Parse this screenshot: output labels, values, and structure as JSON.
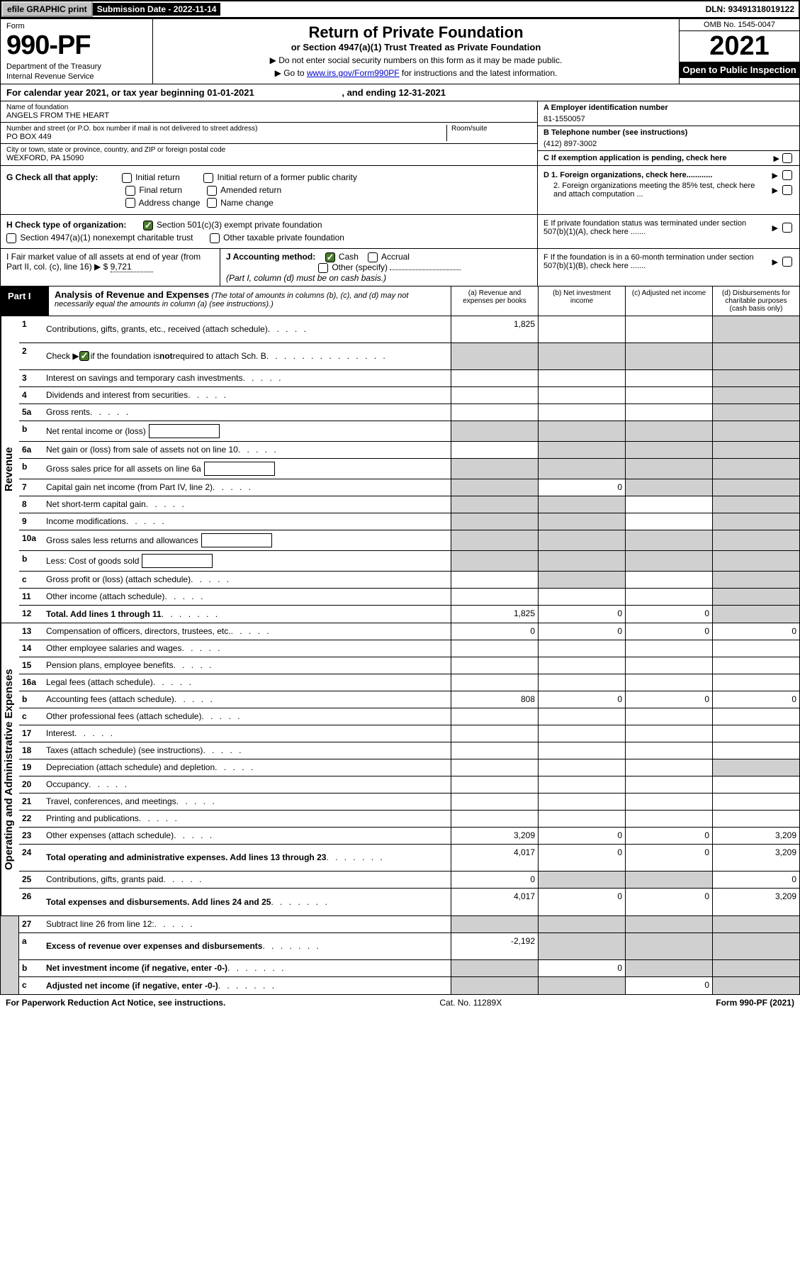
{
  "topbar": {
    "efile": "efile GRAPHIC print",
    "submission": "Submission Date - 2022-11-14",
    "dln": "DLN: 93491318019122"
  },
  "header": {
    "form_label": "Form",
    "form_number": "990-PF",
    "dept": "Department of the Treasury",
    "irs": "Internal Revenue Service",
    "title": "Return of Private Foundation",
    "subtitle": "or Section 4947(a)(1) Trust Treated as Private Foundation",
    "instr1": "▶ Do not enter social security numbers on this form as it may be made public.",
    "instr2_pre": "▶ Go to ",
    "instr2_link": "www.irs.gov/Form990PF",
    "instr2_post": " for instructions and the latest information.",
    "omb": "OMB No. 1545-0047",
    "year": "2021",
    "open": "Open to Public Inspection"
  },
  "cal_year": {
    "pre": "For calendar year 2021, or tax year beginning ",
    "begin": "01-01-2021",
    "mid": " , and ending ",
    "end": "12-31-2021"
  },
  "name_block": {
    "name_label": "Name of foundation",
    "name": "ANGELS FROM THE HEART",
    "street_label": "Number and street (or P.O. box number if mail is not delivered to street address)",
    "street": "PO BOX 449",
    "room_label": "Room/suite",
    "city_label": "City or town, state or province, country, and ZIP or foreign postal code",
    "city": "WEXFORD, PA  15090",
    "ein_label": "A Employer identification number",
    "ein": "81-1550057",
    "phone_label": "B Telephone number (see instructions)",
    "phone": "(412) 897-3002",
    "c_label": "C If exemption application is pending, check here"
  },
  "checks": {
    "g_label": "G Check all that apply:",
    "initial": "Initial return",
    "initial_former": "Initial return of a former public charity",
    "final": "Final return",
    "amended": "Amended return",
    "address": "Address change",
    "name_change": "Name change",
    "d1": "D 1. Foreign organizations, check here............",
    "d2": "2. Foreign organizations meeting the 85% test, check here and attach computation ...",
    "h_label": "H Check type of organization:",
    "h1": "Section 501(c)(3) exempt private foundation",
    "h2": "Section 4947(a)(1) nonexempt charitable trust",
    "h3": "Other taxable private foundation",
    "e_label": "E  If private foundation status was terminated under section 507(b)(1)(A), check here .......",
    "i_label": "I Fair market value of all assets at end of year (from Part II, col. (c), line 16)",
    "i_value": "9,721",
    "j_label": "J Accounting method:",
    "j_cash": "Cash",
    "j_accrual": "Accrual",
    "j_other": "Other (specify)",
    "j_note": "(Part I, column (d) must be on cash basis.)",
    "f_label": "F  If the foundation is in a 60-month termination under section 507(b)(1)(B), check here ......."
  },
  "part1": {
    "label": "Part I",
    "title": "Analysis of Revenue and Expenses",
    "subtitle": " (The total of amounts in columns (b), (c), and (d) may not necessarily equal the amounts in column (a) (see instructions).)",
    "col_a": "(a) Revenue and expenses per books",
    "col_b": "(b) Net investment income",
    "col_c": "(c) Adjusted net income",
    "col_d": "(d) Disbursements for charitable purposes (cash basis only)"
  },
  "sections": {
    "revenue": "Revenue",
    "expenses": "Operating and Administrative Expenses"
  },
  "rows": [
    {
      "num": "1",
      "desc": "Contributions, gifts, grants, etc., received (attach schedule)",
      "a": "1,825",
      "b": "",
      "c": "",
      "d": "shaded",
      "tall": true
    },
    {
      "num": "2",
      "desc": "Check ▶ ☑ if the foundation is not required to attach Sch. B",
      "a": "shaded",
      "b": "shaded",
      "c": "shaded",
      "d": "shaded",
      "tall": true,
      "special": "check"
    },
    {
      "num": "3",
      "desc": "Interest on savings and temporary cash investments",
      "a": "",
      "b": "",
      "c": "",
      "d": "shaded"
    },
    {
      "num": "4",
      "desc": "Dividends and interest from securities",
      "a": "",
      "b": "",
      "c": "",
      "d": "shaded"
    },
    {
      "num": "5a",
      "desc": "Gross rents",
      "a": "",
      "b": "",
      "c": "",
      "d": "shaded"
    },
    {
      "num": "b",
      "desc": "Net rental income or (loss)",
      "a": "shaded",
      "b": "shaded",
      "c": "shaded",
      "d": "shaded",
      "inline": true
    },
    {
      "num": "6a",
      "desc": "Net gain or (loss) from sale of assets not on line 10",
      "a": "",
      "b": "shaded",
      "c": "shaded",
      "d": "shaded"
    },
    {
      "num": "b",
      "desc": "Gross sales price for all assets on line 6a",
      "a": "shaded",
      "b": "shaded",
      "c": "shaded",
      "d": "shaded",
      "inline": true
    },
    {
      "num": "7",
      "desc": "Capital gain net income (from Part IV, line 2)",
      "a": "shaded",
      "b": "0",
      "c": "shaded",
      "d": "shaded"
    },
    {
      "num": "8",
      "desc": "Net short-term capital gain",
      "a": "shaded",
      "b": "shaded",
      "c": "",
      "d": "shaded"
    },
    {
      "num": "9",
      "desc": "Income modifications",
      "a": "shaded",
      "b": "shaded",
      "c": "",
      "d": "shaded"
    },
    {
      "num": "10a",
      "desc": "Gross sales less returns and allowances",
      "a": "shaded",
      "b": "shaded",
      "c": "shaded",
      "d": "shaded",
      "inline": true
    },
    {
      "num": "b",
      "desc": "Less: Cost of goods sold",
      "a": "shaded",
      "b": "shaded",
      "c": "shaded",
      "d": "shaded",
      "inline": true
    },
    {
      "num": "c",
      "desc": "Gross profit or (loss) (attach schedule)",
      "a": "",
      "b": "shaded",
      "c": "",
      "d": "shaded"
    },
    {
      "num": "11",
      "desc": "Other income (attach schedule)",
      "a": "",
      "b": "",
      "c": "",
      "d": "shaded"
    },
    {
      "num": "12",
      "desc": "Total. Add lines 1 through 11",
      "a": "1,825",
      "b": "0",
      "c": "0",
      "d": "shaded",
      "bold": true
    }
  ],
  "exp_rows": [
    {
      "num": "13",
      "desc": "Compensation of officers, directors, trustees, etc.",
      "a": "0",
      "b": "0",
      "c": "0",
      "d": "0"
    },
    {
      "num": "14",
      "desc": "Other employee salaries and wages",
      "a": "",
      "b": "",
      "c": "",
      "d": ""
    },
    {
      "num": "15",
      "desc": "Pension plans, employee benefits",
      "a": "",
      "b": "",
      "c": "",
      "d": ""
    },
    {
      "num": "16a",
      "desc": "Legal fees (attach schedule)",
      "a": "",
      "b": "",
      "c": "",
      "d": ""
    },
    {
      "num": "b",
      "desc": "Accounting fees (attach schedule)",
      "a": "808",
      "b": "0",
      "c": "0",
      "d": "0"
    },
    {
      "num": "c",
      "desc": "Other professional fees (attach schedule)",
      "a": "",
      "b": "",
      "c": "",
      "d": ""
    },
    {
      "num": "17",
      "desc": "Interest",
      "a": "",
      "b": "",
      "c": "",
      "d": ""
    },
    {
      "num": "18",
      "desc": "Taxes (attach schedule) (see instructions)",
      "a": "",
      "b": "",
      "c": "",
      "d": ""
    },
    {
      "num": "19",
      "desc": "Depreciation (attach schedule) and depletion",
      "a": "",
      "b": "",
      "c": "",
      "d": "shaded"
    },
    {
      "num": "20",
      "desc": "Occupancy",
      "a": "",
      "b": "",
      "c": "",
      "d": ""
    },
    {
      "num": "21",
      "desc": "Travel, conferences, and meetings",
      "a": "",
      "b": "",
      "c": "",
      "d": ""
    },
    {
      "num": "22",
      "desc": "Printing and publications",
      "a": "",
      "b": "",
      "c": "",
      "d": ""
    },
    {
      "num": "23",
      "desc": "Other expenses (attach schedule)",
      "a": "3,209",
      "b": "0",
      "c": "0",
      "d": "3,209"
    },
    {
      "num": "24",
      "desc": "Total operating and administrative expenses. Add lines 13 through 23",
      "a": "4,017",
      "b": "0",
      "c": "0",
      "d": "3,209",
      "bold": true,
      "tall": true
    },
    {
      "num": "25",
      "desc": "Contributions, gifts, grants paid",
      "a": "0",
      "b": "shaded",
      "c": "shaded",
      "d": "0"
    },
    {
      "num": "26",
      "desc": "Total expenses and disbursements. Add lines 24 and 25",
      "a": "4,017",
      "b": "0",
      "c": "0",
      "d": "3,209",
      "bold": true,
      "tall": true
    }
  ],
  "bottom_rows": [
    {
      "num": "27",
      "desc": "Subtract line 26 from line 12:",
      "a": "shaded",
      "b": "shaded",
      "c": "shaded",
      "d": "shaded"
    },
    {
      "num": "a",
      "desc": "Excess of revenue over expenses and disbursements",
      "a": "-2,192",
      "b": "shaded",
      "c": "shaded",
      "d": "shaded",
      "bold": true,
      "tall": true
    },
    {
      "num": "b",
      "desc": "Net investment income (if negative, enter -0-)",
      "a": "shaded",
      "b": "0",
      "c": "shaded",
      "d": "shaded",
      "bold": true
    },
    {
      "num": "c",
      "desc": "Adjusted net income (if negative, enter -0-)",
      "a": "shaded",
      "b": "shaded",
      "c": "0",
      "d": "shaded",
      "bold": true
    }
  ],
  "footer": {
    "left": "For Paperwork Reduction Act Notice, see instructions.",
    "center": "Cat. No. 11289X",
    "right": "Form 990-PF (2021)"
  }
}
